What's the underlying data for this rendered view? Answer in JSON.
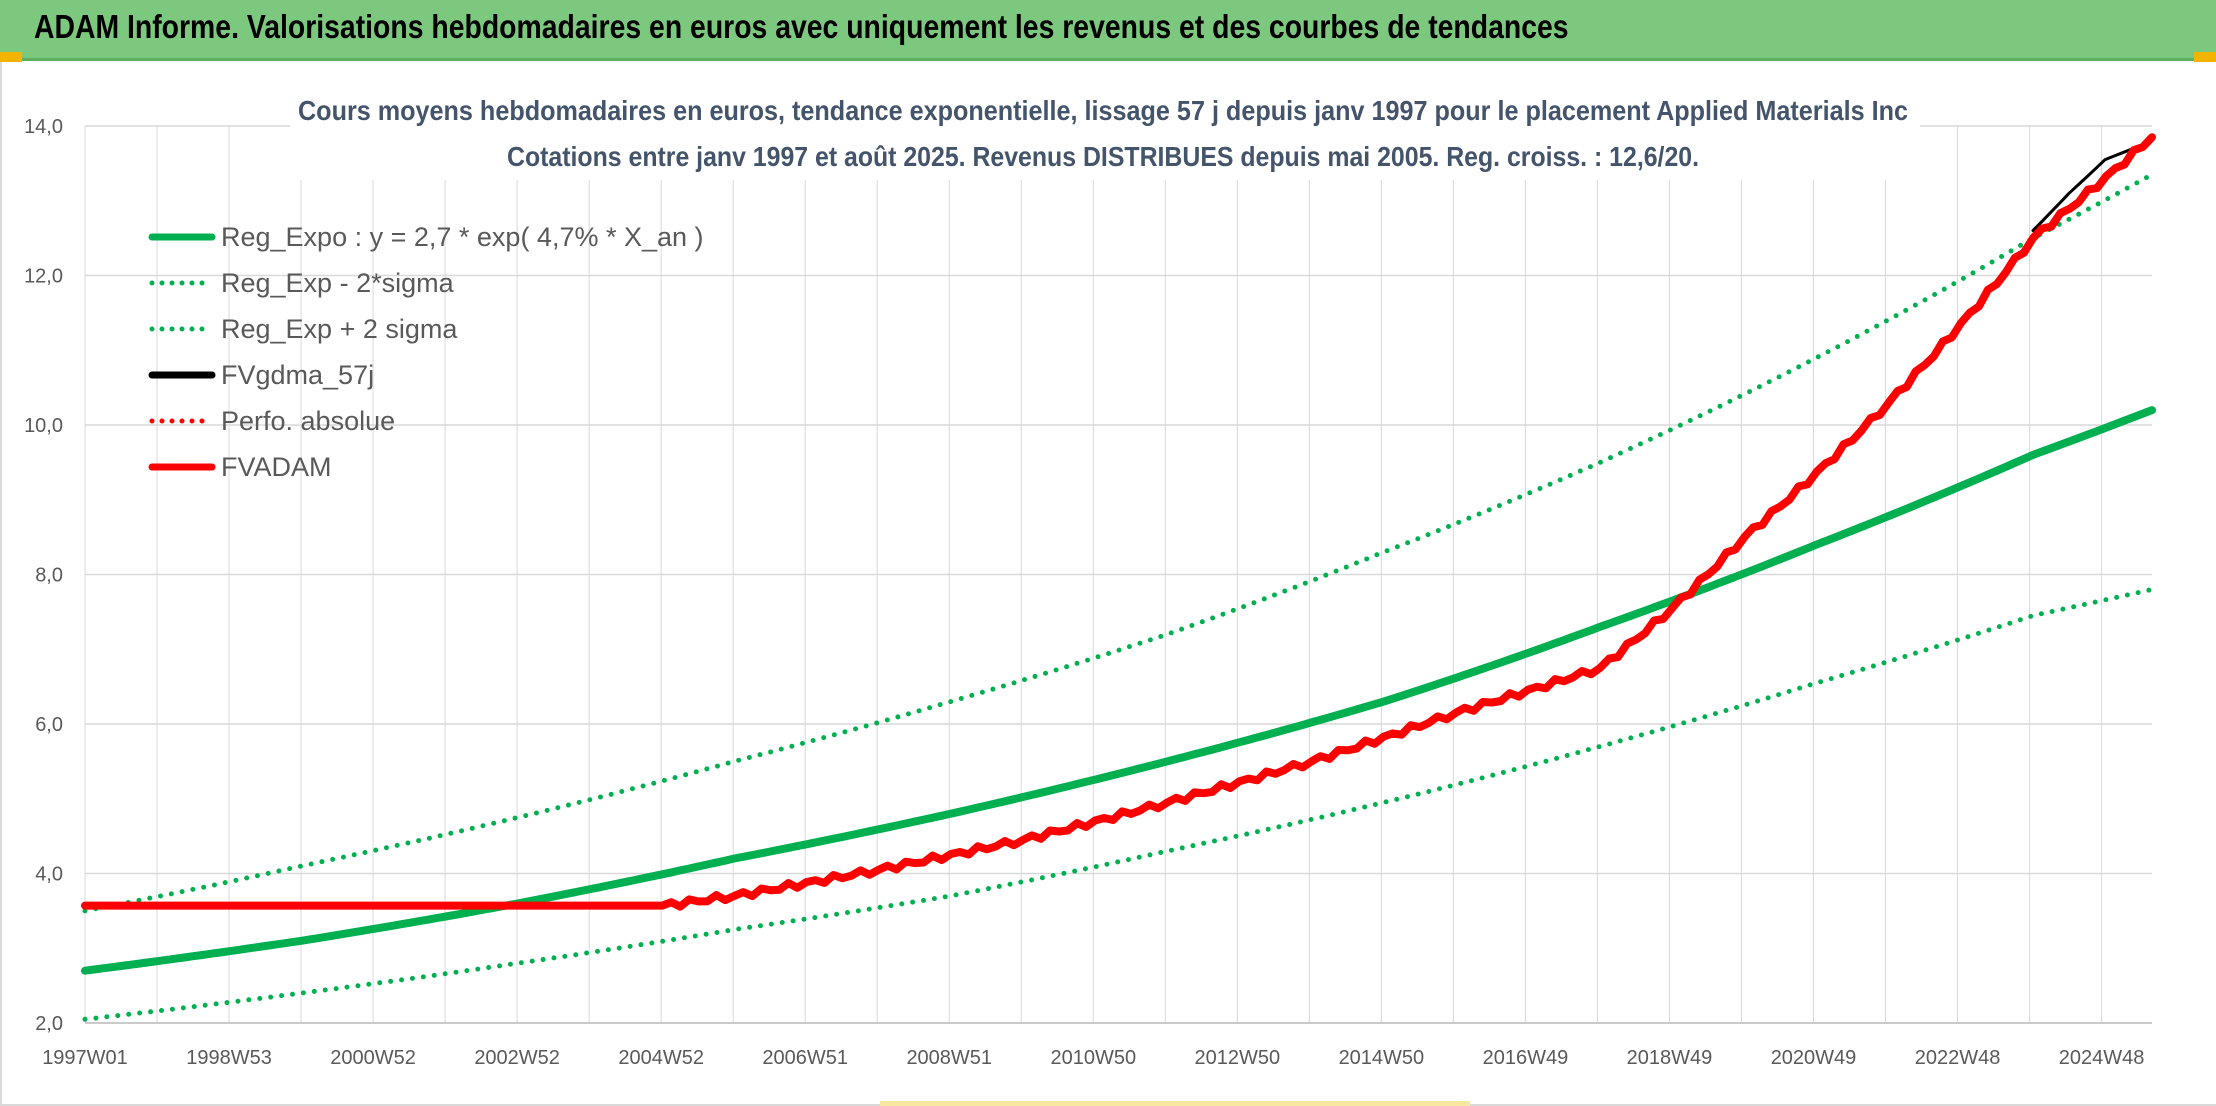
{
  "header": {
    "title": "ADAM Informe. Valorisations hebdomadaires en euros avec uniquement les revenus et des courbes de tendances"
  },
  "colors": {
    "header_bg": "#7dc87f",
    "green": "#00b050",
    "red": "#ff0000",
    "black": "#000000",
    "grid": "#d9d9d9",
    "accent": "#f2b400"
  },
  "chart_data": {
    "type": "line",
    "title": "Cours moyens hebdomadaires en euros, tendance exponentielle, lissage 57 j depuis janv 1997 pour le placement Applied Materials Inc",
    "subtitle": "Cotations entre janv 1997 et août 2025. Revenus DISTRIBUES depuis mai 2005. Reg. croiss. : 12,6/20.",
    "xlabel": "",
    "ylabel": "",
    "ylim": [
      2.0,
      14.0
    ],
    "xlim": [
      1997.0,
      2025.65
    ],
    "grid": true,
    "legend_position": "top-left",
    "y_ticks": [
      "2,0",
      "4,0",
      "6,0",
      "8,0",
      "10,0",
      "12,0",
      "14,0"
    ],
    "x_tick_labels": [
      "1997W01",
      "1998W53",
      "2000W52",
      "2002W52",
      "2004W52",
      "2006W51",
      "2008W51",
      "2010W50",
      "2012W50",
      "2014W50",
      "2016W49",
      "2018W49",
      "2020W49",
      "2022W48",
      "2024W48"
    ],
    "series": [
      {
        "name": "Reg_Expo : y = 2,7 * exp( 4,7% *  X_an )",
        "style": "solid",
        "color": "#00b050",
        "x": [
          1997,
          2000,
          2003,
          2006,
          2009,
          2012,
          2015,
          2018,
          2021,
          2024,
          2025.65
        ],
        "y": [
          2.7,
          3.1,
          3.6,
          4.2,
          4.8,
          5.5,
          6.3,
          7.3,
          8.4,
          9.6,
          10.2
        ]
      },
      {
        "name": "Reg_Exp - 2*sigma",
        "style": "dotted",
        "color": "#00b050",
        "x": [
          1997,
          2000,
          2003,
          2006,
          2009,
          2012,
          2015,
          2018,
          2021,
          2024,
          2025.65
        ],
        "y": [
          2.05,
          2.4,
          2.8,
          3.25,
          3.7,
          4.3,
          4.95,
          5.7,
          6.55,
          7.45,
          7.8
        ]
      },
      {
        "name": "Reg_Exp + 2 sigma",
        "style": "dotted",
        "color": "#00b050",
        "x": [
          1997,
          2000,
          2003,
          2006,
          2009,
          2012,
          2015,
          2018,
          2021,
          2024,
          2025.65
        ],
        "y": [
          3.5,
          4.1,
          4.75,
          5.5,
          6.3,
          7.2,
          8.3,
          9.5,
          10.9,
          12.5,
          13.35
        ]
      },
      {
        "name": "FVgdma_57j",
        "style": "solid",
        "color": "#000000",
        "x": [
          2024.0,
          2024.5,
          2025.0,
          2025.65
        ],
        "y": [
          12.6,
          13.1,
          13.55,
          13.8
        ]
      },
      {
        "name": "Perfo. absolue",
        "style": "dotted",
        "color": "#ff0000",
        "x": [],
        "y": []
      },
      {
        "name": "FVADAM",
        "style": "solid",
        "color": "#ff0000",
        "x": [
          1997,
          2005,
          2006,
          2008,
          2010,
          2012,
          2014,
          2016,
          2018,
          2019,
          2020,
          2022,
          2024,
          2025.65
        ],
        "y": [
          3.57,
          3.57,
          3.7,
          4.05,
          4.45,
          4.95,
          5.5,
          6.15,
          6.75,
          7.55,
          8.5,
          10.3,
          12.5,
          13.85
        ]
      }
    ]
  }
}
